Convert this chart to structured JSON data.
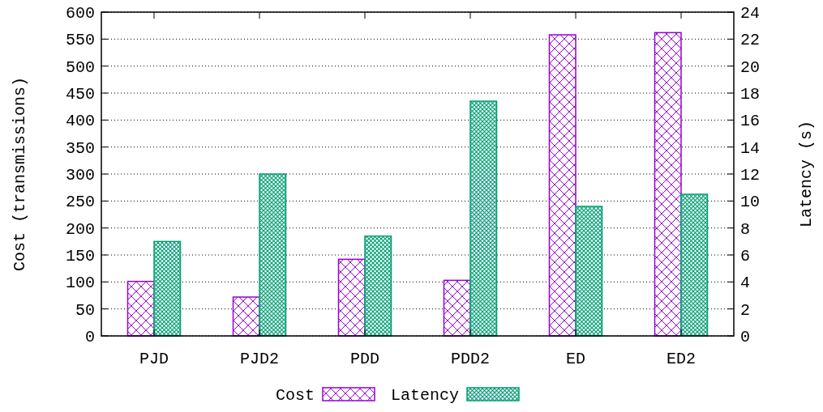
{
  "chart_data": {
    "type": "bar",
    "categories": [
      "PJD",
      "PJD2",
      "PDD",
      "PDD2",
      "ED",
      "ED2"
    ],
    "ylabel": "Cost (transmissions)",
    "y2label": "Latency (s)",
    "series": [
      {
        "name": "Cost",
        "color": "#9400d3",
        "values": [
          101,
          72,
          142,
          103,
          558,
          562
        ]
      },
      {
        "name": "Latency",
        "color": "#009e73",
        "axis": "y2",
        "values": [
          7.0,
          12.0,
          7.4,
          17.4,
          9.6,
          10.5
        ]
      }
    ],
    "ylim": [
      0,
      600
    ],
    "yticks": [
      0,
      50,
      100,
      150,
      200,
      250,
      300,
      350,
      400,
      450,
      500,
      550,
      600
    ],
    "y2lim": [
      0,
      24
    ],
    "y2ticks": [
      0,
      2,
      4,
      6,
      8,
      10,
      12,
      14,
      16,
      18,
      20,
      22,
      24
    ],
    "grid": "y",
    "legend": "bottom"
  }
}
